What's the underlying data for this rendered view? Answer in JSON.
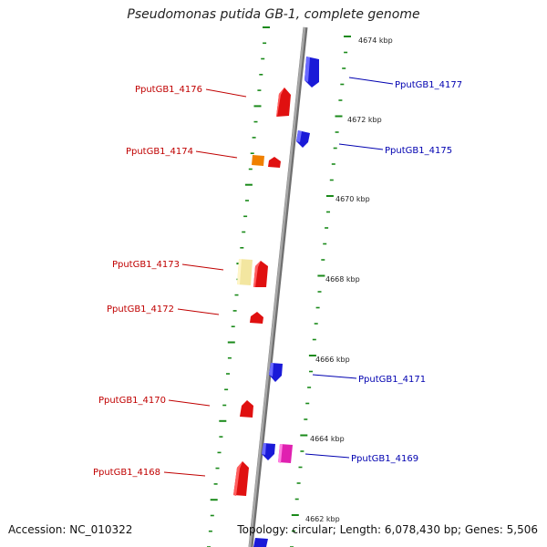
{
  "title": "Pseudomonas putida GB-1, complete genome",
  "footer": {
    "accession": "Accession: NC_010322",
    "summary": "Topology: circular; Length: 6,078,430 bp; Genes: 5,506"
  },
  "colors": {
    "forward_gene": "#e01010",
    "reverse_gene": "#1a1ad8",
    "label_forward": "#c00000",
    "label_reverse": "#0000b0",
    "backbone": "#8a8a8a",
    "dash": "#1a8a1a"
  },
  "scale": {
    "labels": [
      {
        "text": "4674 kbp"
      },
      {
        "text": "4672 kbp"
      },
      {
        "text": "4670 kbp"
      },
      {
        "text": "4668 kbp"
      },
      {
        "text": "4666 kbp"
      },
      {
        "text": "4664 kbp"
      },
      {
        "text": "4662 kbp"
      }
    ]
  },
  "genes": [
    {
      "label": "PputGB1_4177",
      "strand": "reverse",
      "color": "#1a1ad8"
    },
    {
      "label": "PputGB1_4176",
      "strand": "forward",
      "color": "#e01010"
    },
    {
      "label": "PputGB1_4175",
      "strand": "reverse",
      "color": "#1a1ad8"
    },
    {
      "label": "PputGB1_4174",
      "strand": "forward",
      "color": "#e01010",
      "extra_color": "#f08000"
    },
    {
      "label": "PputGB1_4173",
      "strand": "forward",
      "color": "#e01010",
      "extra_color": "#f3e6a0"
    },
    {
      "label": "PputGB1_4172",
      "strand": "forward",
      "color": "#e01010"
    },
    {
      "label": "PputGB1_4171",
      "strand": "reverse",
      "color": "#1a1ad8"
    },
    {
      "label": "PputGB1_4170",
      "strand": "forward",
      "color": "#e01010"
    },
    {
      "label": "PputGB1_4169",
      "strand": "reverse",
      "color": "#1a1ad8",
      "extra_color": "#e020b0"
    },
    {
      "label": "PputGB1_4168",
      "strand": "forward",
      "color": "#e01010"
    }
  ]
}
